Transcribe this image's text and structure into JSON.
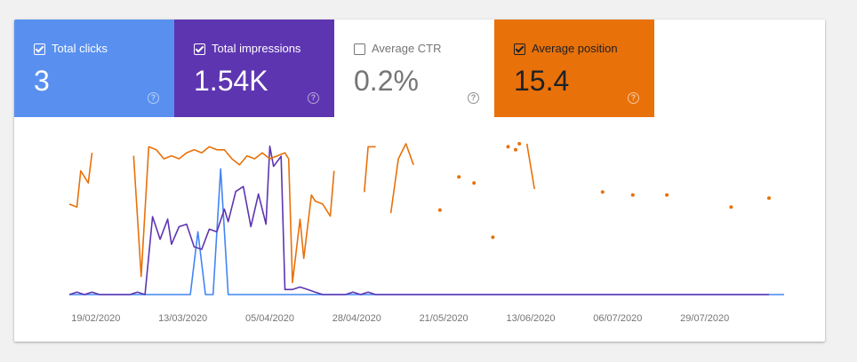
{
  "metrics": [
    {
      "key": "clicks",
      "label": "Total clicks",
      "value": "3",
      "checked": true,
      "color": "#5990f0",
      "help_icon": "question-circle-icon"
    },
    {
      "key": "impressions",
      "label": "Total impressions",
      "value": "1.54K",
      "checked": true,
      "color": "#5e35b1",
      "help_icon": "question-circle-icon"
    },
    {
      "key": "ctr",
      "label": "Average CTR",
      "value": "0.2%",
      "checked": false,
      "color": "#ffffff",
      "help_icon": "question-circle-icon"
    },
    {
      "key": "position",
      "label": "Average position",
      "value": "15.4",
      "checked": true,
      "color": "#e8710a",
      "help_icon": "question-circle-icon"
    }
  ],
  "help_glyph": "?",
  "chart_data": {
    "type": "line",
    "x_tick_labels": [
      "19/02/2020",
      "13/03/2020",
      "05/04/2020",
      "28/04/2020",
      "21/05/2020",
      "13/06/2020",
      "06/07/2020",
      "29/07/2020"
    ],
    "x_tick_dates": [
      "2020-02-19",
      "2020-03-13",
      "2020-04-05",
      "2020-04-28",
      "2020-05-21",
      "2020-06-13",
      "2020-07-06",
      "2020-07-29"
    ],
    "x_range": [
      "2020-02-12",
      "2020-08-19"
    ],
    "grid": false,
    "legend": "none",
    "series": [
      {
        "name": "Average position",
        "color": "#e8710a",
        "scale": "inverted",
        "y_range": [
          0,
          50
        ],
        "points": [
          [
            "2020-02-12",
            20
          ],
          [
            "2020-02-14",
            21
          ],
          [
            "2020-02-15",
            9
          ],
          [
            "2020-02-17",
            13
          ],
          [
            "2020-02-18",
            3
          ],
          [
            "2020-02-20",
            null
          ],
          [
            "2020-02-29",
            4
          ],
          [
            "2020-03-02",
            44
          ],
          [
            "2020-03-04",
            1
          ],
          [
            "2020-03-06",
            2
          ],
          [
            "2020-03-08",
            5
          ],
          [
            "2020-03-10",
            4
          ],
          [
            "2020-03-12",
            5
          ],
          [
            "2020-03-14",
            3
          ],
          [
            "2020-03-16",
            2
          ],
          [
            "2020-03-18",
            3
          ],
          [
            "2020-03-20",
            1
          ],
          [
            "2020-03-22",
            2
          ],
          [
            "2020-03-24",
            2
          ],
          [
            "2020-03-26",
            5
          ],
          [
            "2020-03-28",
            7
          ],
          [
            "2020-03-30",
            4
          ],
          [
            "2020-04-01",
            5
          ],
          [
            "2020-04-03",
            3
          ],
          [
            "2020-04-05",
            5
          ],
          [
            "2020-04-07",
            4
          ],
          [
            "2020-04-09",
            3
          ],
          [
            "2020-04-10",
            5
          ],
          [
            "2020-04-11",
            46
          ],
          [
            "2020-04-13",
            25
          ],
          [
            "2020-04-14",
            38
          ],
          [
            "2020-04-16",
            17
          ],
          [
            "2020-04-17",
            19
          ],
          [
            "2020-04-19",
            20
          ],
          [
            "2020-04-21",
            24
          ],
          [
            "2020-04-22",
            9
          ],
          [
            "2020-04-23",
            null
          ],
          [
            "2020-04-30",
            16
          ],
          [
            "2020-05-01",
            1
          ],
          [
            "2020-05-03",
            1
          ],
          [
            "2020-05-04",
            null
          ],
          [
            "2020-05-07",
            23
          ],
          [
            "2020-05-09",
            5
          ],
          [
            "2020-05-11",
            0
          ],
          [
            "2020-05-13",
            7
          ],
          [
            "2020-05-14",
            null
          ],
          [
            "2020-05-20",
            22
          ],
          [
            "2020-05-21",
            null
          ],
          [
            "2020-06-03",
            31
          ],
          [
            "2020-06-04",
            null
          ],
          [
            "2020-06-10",
            0
          ],
          [
            "2020-06-11",
            null
          ],
          [
            "2020-06-12",
            0
          ],
          [
            "2020-06-14",
            15
          ],
          [
            "2020-06-15",
            null
          ],
          [
            "2020-07-02",
            16
          ],
          [
            "2020-07-03",
            null
          ],
          [
            "2020-07-10",
            17
          ],
          [
            "2020-07-11",
            null
          ],
          [
            "2020-07-19",
            17
          ],
          [
            "2020-07-20",
            null
          ],
          [
            "2020-08-05",
            21
          ],
          [
            "2020-08-06",
            null
          ],
          [
            "2020-08-15",
            18
          ],
          [
            "2020-08-16",
            null
          ],
          [
            "2020-05-25",
            11
          ],
          [
            "2020-05-26",
            null
          ],
          [
            "2020-05-29",
            13
          ],
          [
            "2020-05-30",
            null
          ],
          [
            "2020-06-07",
            1
          ],
          [
            "2020-06-08",
            null
          ],
          [
            "2020-06-09",
            2
          ],
          [
            "2020-06-09b",
            null
          ]
        ]
      },
      {
        "name": "Total impressions",
        "color": "#5e35b1",
        "scale": "normal",
        "y_range": [
          0,
          60
        ],
        "points": [
          [
            "2020-02-12",
            0
          ],
          [
            "2020-02-14",
            1
          ],
          [
            "2020-02-16",
            0
          ],
          [
            "2020-02-18",
            1
          ],
          [
            "2020-02-20",
            0
          ],
          [
            "2020-02-28",
            0
          ],
          [
            "2020-03-01",
            1
          ],
          [
            "2020-03-03",
            0
          ],
          [
            "2020-03-05",
            31
          ],
          [
            "2020-03-07",
            22
          ],
          [
            "2020-03-09",
            30
          ],
          [
            "2020-03-10",
            20
          ],
          [
            "2020-03-12",
            27
          ],
          [
            "2020-03-14",
            28
          ],
          [
            "2020-03-16",
            19
          ],
          [
            "2020-03-18",
            18
          ],
          [
            "2020-03-20",
            26
          ],
          [
            "2020-03-22",
            25
          ],
          [
            "2020-03-24",
            34
          ],
          [
            "2020-03-25",
            29
          ],
          [
            "2020-03-27",
            41
          ],
          [
            "2020-03-29",
            43
          ],
          [
            "2020-03-31",
            27
          ],
          [
            "2020-04-02",
            40
          ],
          [
            "2020-04-04",
            28
          ],
          [
            "2020-04-05",
            59
          ],
          [
            "2020-04-06",
            51
          ],
          [
            "2020-04-08",
            55
          ],
          [
            "2020-04-09",
            2
          ],
          [
            "2020-04-11",
            2
          ],
          [
            "2020-04-13",
            3
          ],
          [
            "2020-04-15",
            2
          ],
          [
            "2020-04-17",
            1
          ],
          [
            "2020-04-19",
            0
          ],
          [
            "2020-04-25",
            0
          ],
          [
            "2020-04-27",
            1
          ],
          [
            "2020-04-29",
            0
          ],
          [
            "2020-05-01",
            1
          ],
          [
            "2020-05-03",
            0
          ],
          [
            "2020-05-07",
            0
          ],
          [
            "2020-05-19",
            0
          ],
          [
            "2020-05-24",
            0
          ],
          [
            "2020-05-28",
            0
          ],
          [
            "2020-06-03",
            0
          ],
          [
            "2020-06-13",
            0
          ],
          [
            "2020-06-22",
            0
          ],
          [
            "2020-07-02",
            0
          ],
          [
            "2020-07-10",
            0
          ],
          [
            "2020-07-19",
            0
          ],
          [
            "2020-08-05",
            0
          ],
          [
            "2020-08-15",
            0
          ]
        ]
      },
      {
        "name": "Total clicks",
        "color": "#4285f4",
        "scale": "normal",
        "y_range": [
          0,
          1.2
        ],
        "points": [
          [
            "2020-02-12",
            0
          ],
          [
            "2020-03-15",
            0
          ],
          [
            "2020-03-17",
            0.5
          ],
          [
            "2020-03-19",
            0
          ],
          [
            "2020-03-21",
            0
          ],
          [
            "2020-03-23",
            1
          ],
          [
            "2020-03-25",
            0
          ],
          [
            "2020-08-19",
            0
          ]
        ]
      }
    ]
  }
}
